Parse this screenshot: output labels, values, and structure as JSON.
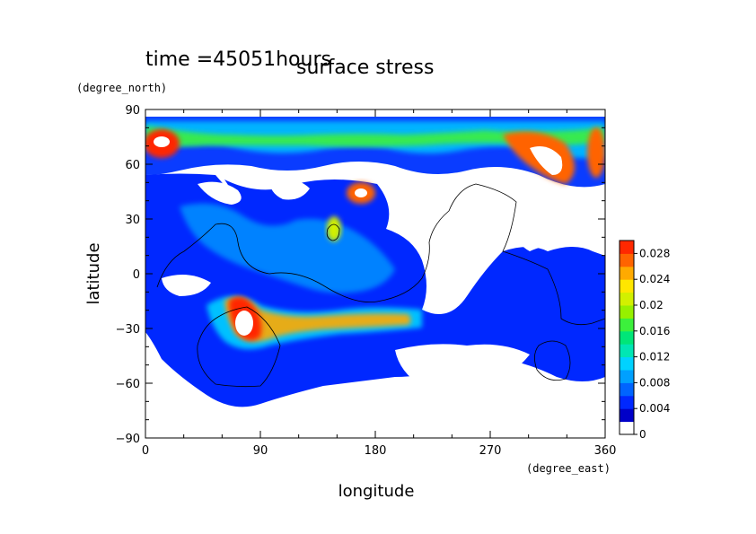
{
  "chart_data": {
    "type": "heatmap",
    "title_left": "time =45051hours",
    "title_right": "surface stress",
    "xlabel": "longitude",
    "ylabel": "latitude",
    "x_unit": "(degree_east)",
    "y_unit": "(degree_north)",
    "xlim": [
      0,
      360
    ],
    "ylim": [
      -90,
      90
    ],
    "x_ticks": [
      0,
      90,
      180,
      270,
      360
    ],
    "y_ticks": [
      90,
      60,
      30,
      0,
      -30,
      -60,
      -90
    ],
    "x_tick_labels": [
      "0",
      "90",
      "180",
      "270",
      "360"
    ],
    "y_tick_labels": [
      "90",
      "60",
      "30",
      "0",
      "−30",
      "−60",
      "−90"
    ],
    "colorbar": {
      "min": 0,
      "max": 0.03,
      "tick_values": [
        0,
        0.004,
        0.008,
        0.012,
        0.016,
        0.02,
        0.024,
        0.028
      ],
      "tick_labels": [
        "0",
        "0.004",
        "0.008",
        "0.012",
        "0.016",
        "0.02",
        "0.024",
        "0.028"
      ],
      "colors": [
        "#ffffff",
        "#0000c8",
        "#0028ff",
        "#0064ff",
        "#00a0ff",
        "#00d2ff",
        "#00e6b4",
        "#00e678",
        "#3cf03c",
        "#96f000",
        "#d2f000",
        "#ffe600",
        "#ffaa00",
        "#ff6400",
        "#ff2800"
      ]
    },
    "hotspots": [
      {
        "region": "north polar band",
        "lon": 15,
        "lat": 70,
        "value": 0.03
      },
      {
        "region": "north polar band",
        "lon": 290,
        "lat": 65,
        "value": 0.03
      },
      {
        "region": "north polar band",
        "lon": 355,
        "lat": 65,
        "value": 0.026
      },
      {
        "region": "north mid-latitude",
        "lon": 168,
        "lat": 43,
        "value": 0.03
      },
      {
        "region": "north mid-latitude",
        "lon": 145,
        "lat": 25,
        "value": 0.02
      },
      {
        "region": "southern band",
        "lon": 70,
        "lat": -27,
        "value": 0.03
      },
      {
        "region": "southern band",
        "lon": 135,
        "lat": -32,
        "value": 0.026
      },
      {
        "region": "southern band",
        "lon": 200,
        "lat": -25,
        "value": 0.02
      }
    ]
  }
}
